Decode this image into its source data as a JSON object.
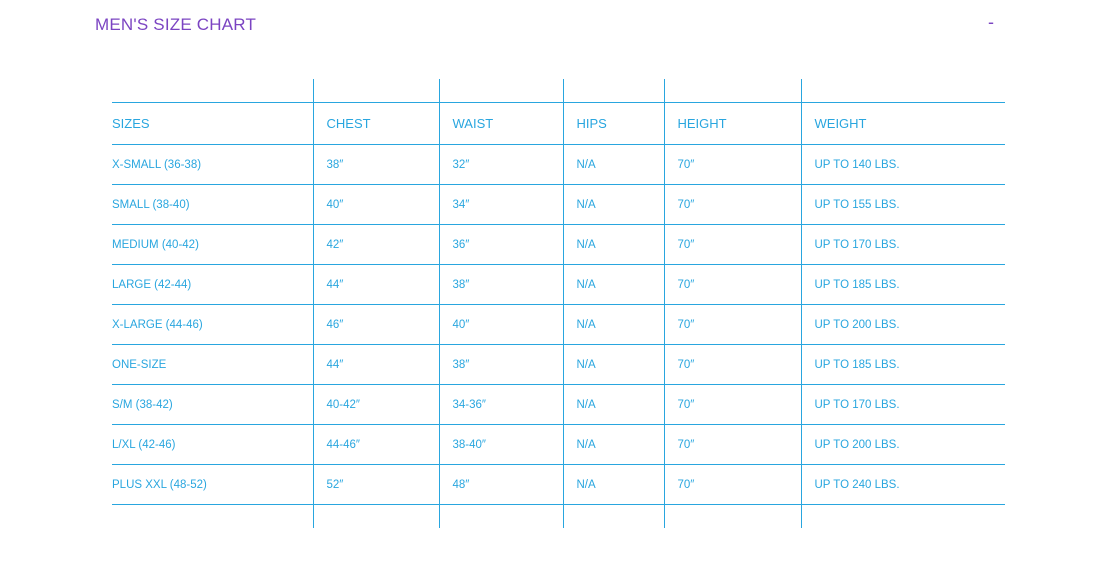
{
  "title": "MEN'S SIZE CHART",
  "collapse_label": "-",
  "colors": {
    "title": "#7b44c2",
    "table": "#29a6df"
  },
  "table": {
    "headers": [
      "SIZES",
      "CHEST",
      "WAIST",
      "HIPS",
      "HEIGHT",
      "WEIGHT"
    ],
    "rows": [
      [
        "X-SMALL (36-38)",
        "38″",
        "32″",
        "N/A",
        "70″",
        "UP TO 140 LBS."
      ],
      [
        "SMALL (38-40)",
        "40″",
        "34″",
        "N/A",
        "70″",
        "UP TO 155 LBS."
      ],
      [
        "MEDIUM (40-42)",
        "42″",
        "36″",
        "N/A",
        "70″",
        "UP TO 170 LBS."
      ],
      [
        "LARGE (42-44)",
        "44″",
        "38″",
        "N/A",
        "70″",
        "UP TO 185 LBS."
      ],
      [
        "X-LARGE (44-46)",
        "46″",
        "40″",
        "N/A",
        "70″",
        "UP TO 200 LBS."
      ],
      [
        "ONE-SIZE",
        "44″",
        "38″",
        "N/A",
        "70″",
        "UP TO 185 LBS."
      ],
      [
        "S/M (38-42)",
        "40-42″",
        "34-36″",
        "N/A",
        "70″",
        "UP TO 170 LBS."
      ],
      [
        "L/XL (42-46)",
        "44-46″",
        "38-40″",
        "N/A",
        "70″",
        "UP TO 200 LBS."
      ],
      [
        "PLUS XXL (48-52)",
        "52″",
        "48″",
        "N/A",
        "70″",
        "UP TO 240 LBS."
      ]
    ]
  }
}
